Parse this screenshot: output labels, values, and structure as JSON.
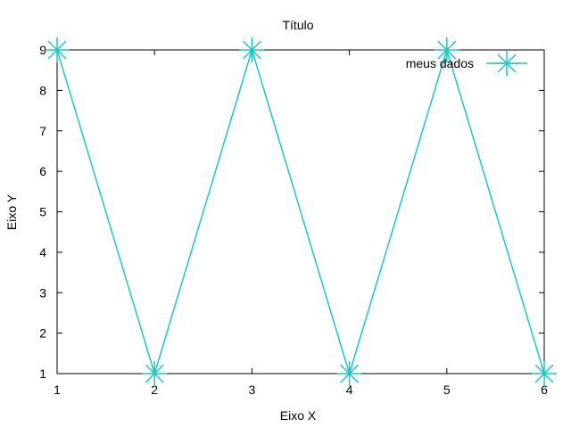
{
  "chart_data": {
    "type": "line",
    "title": "Título",
    "xlabel": "Eixo X",
    "ylabel": "Eixo Y",
    "xlim": [
      1,
      6
    ],
    "ylim": [
      1,
      9
    ],
    "xticks": [
      1,
      2,
      3,
      4,
      5,
      6
    ],
    "yticks": [
      1,
      2,
      3,
      4,
      5,
      6,
      7,
      8,
      9
    ],
    "grid": false,
    "legend_position": "top-right",
    "marker": "asterisk",
    "series": [
      {
        "name": "meus dados",
        "color": "#20c5c5",
        "x": [
          1,
          2,
          3,
          4,
          5,
          6
        ],
        "y": [
          9,
          1,
          9,
          1,
          9,
          1
        ]
      }
    ]
  }
}
